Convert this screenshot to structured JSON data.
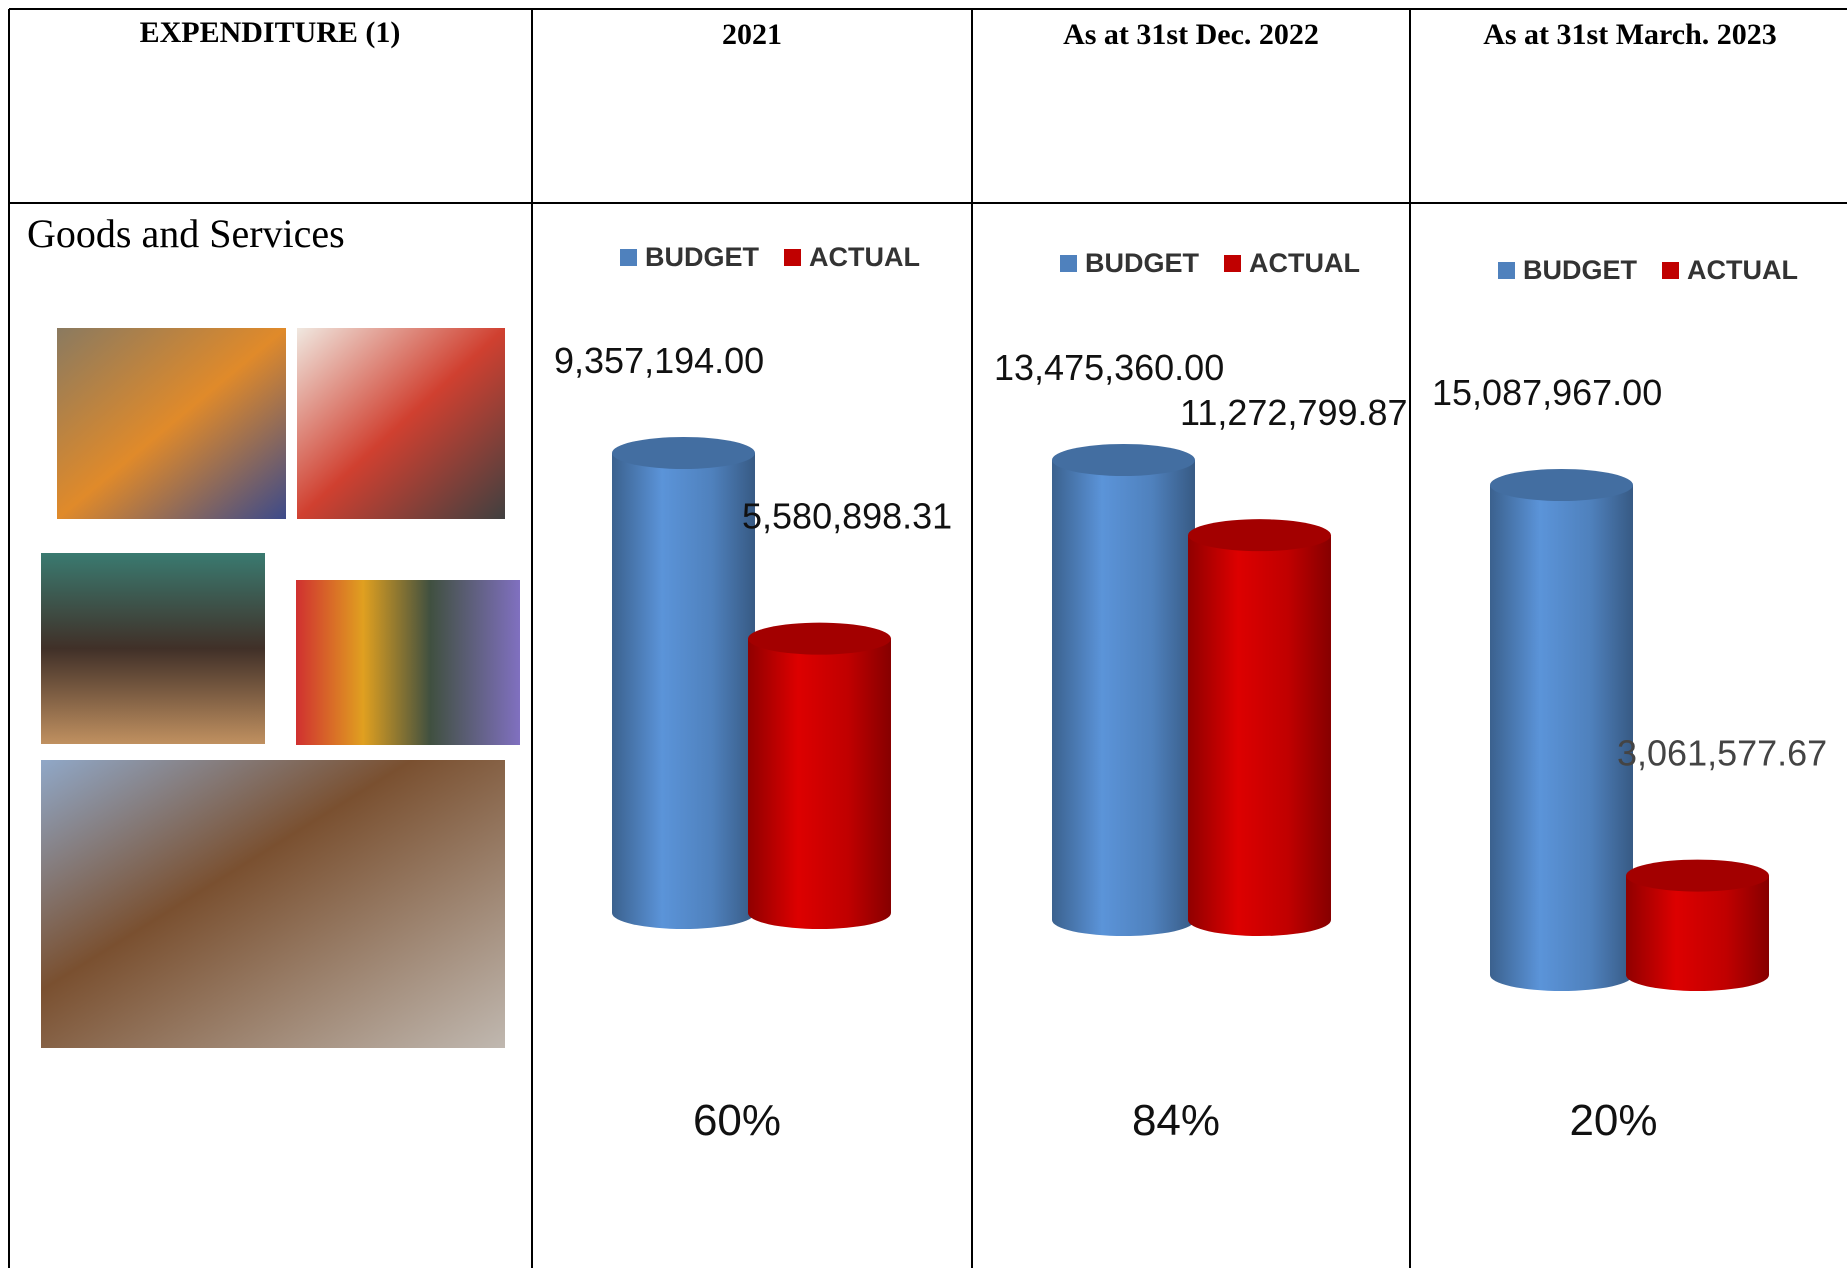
{
  "table": {
    "headers": [
      "EXPENDITURE (1)",
      "2021",
      "As at 31st Dec. 2022",
      "As at 31st March. 2023"
    ],
    "row_label": "Goods and Services"
  },
  "chart_data": [
    {
      "type": "bar",
      "series": [
        {
          "name": "BUDGET",
          "color": "#4f81bd",
          "values": [
            9357194.0
          ],
          "value_labels": [
            "9,357,194.00"
          ]
        },
        {
          "name": "ACTUAL",
          "color": "#c00000",
          "values": [
            5580898.31
          ],
          "value_labels": [
            "5,580,898.31"
          ]
        }
      ],
      "annotation": "60%"
    },
    {
      "type": "bar",
      "series": [
        {
          "name": "BUDGET",
          "color": "#4f81bd",
          "values": [
            13475360.0
          ],
          "value_labels": [
            "13,475,360.00"
          ]
        },
        {
          "name": "ACTUAL",
          "color": "#c00000",
          "values": [
            11272799.87
          ],
          "value_labels": [
            "11,272,799.87"
          ]
        }
      ],
      "annotation": "84%"
    },
    {
      "type": "bar",
      "series": [
        {
          "name": "BUDGET",
          "color": "#4f81bd",
          "values": [
            15087967.0
          ],
          "value_labels": [
            "15,087,967.00"
          ]
        },
        {
          "name": "ACTUAL",
          "color": "#c00000",
          "values": [
            3061577.67
          ],
          "value_labels": [
            "3,061,577.67"
          ]
        }
      ],
      "annotation": "20%"
    }
  ]
}
